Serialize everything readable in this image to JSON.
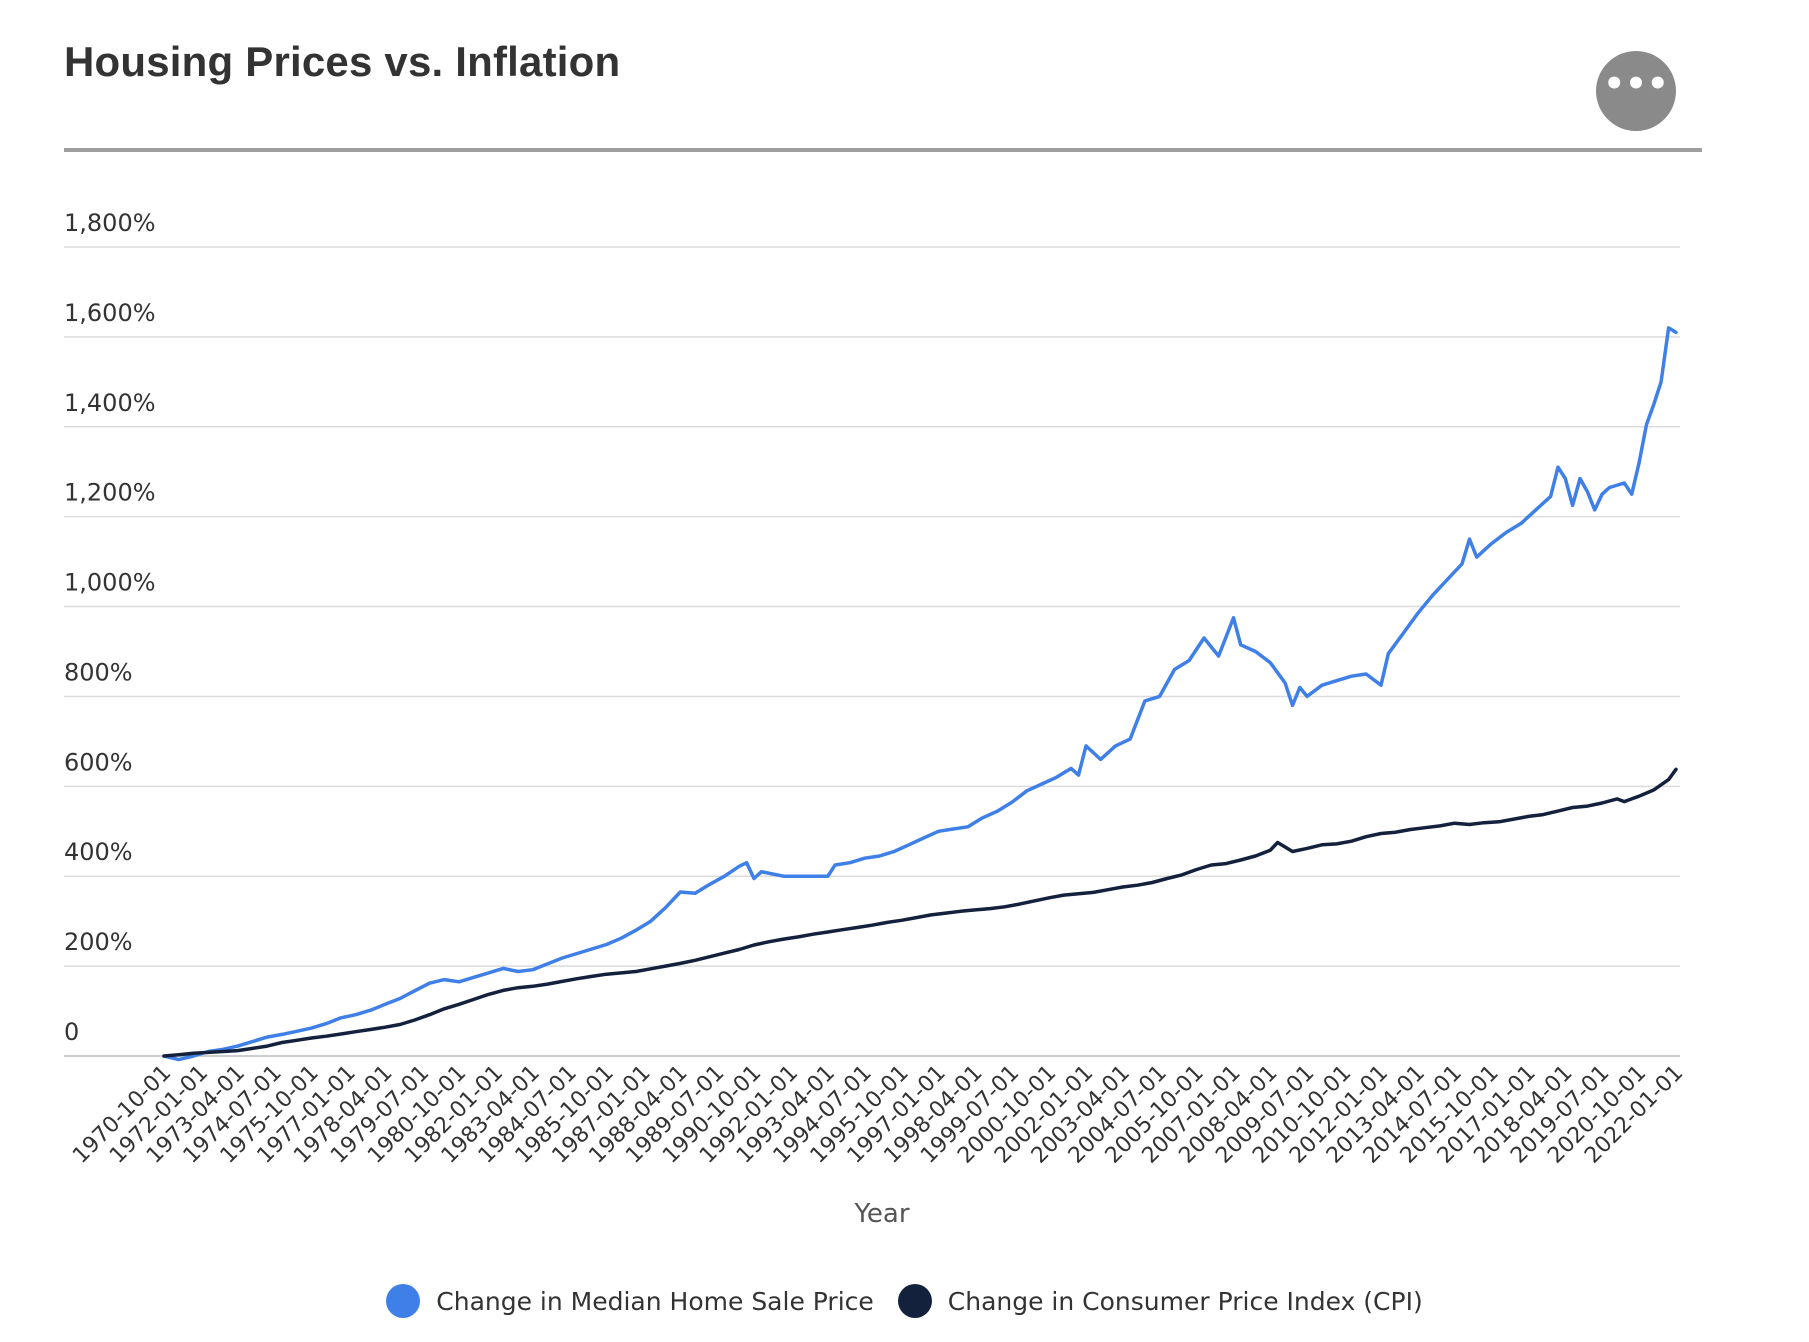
{
  "header": {
    "title": "Housing Prices vs. Inflation",
    "menu_icon": "more-horizontal-icon",
    "menu_glyph": "•••"
  },
  "colors": {
    "home_price": "#3f7fe8",
    "cpi": "#14213d",
    "grid": "#dcdcdc",
    "axis_text": "#333333",
    "header_rule": "#9e9e9e"
  },
  "legend": {
    "items": [
      {
        "label": "Change in Median Home Sale Price",
        "color": "#3f7fe8"
      },
      {
        "label": "Change in Consumer Price Index (CPI)",
        "color": "#14213d"
      }
    ]
  },
  "chart_data": {
    "type": "line",
    "title": "Housing Prices vs. Inflation",
    "xlabel": "Year",
    "ylabel": "",
    "ylim": [
      0,
      1800
    ],
    "yticks": [
      {
        "value": 0,
        "label": "0"
      },
      {
        "value": 200,
        "label": "200%"
      },
      {
        "value": 400,
        "label": "400%"
      },
      {
        "value": 600,
        "label": "600%"
      },
      {
        "value": 800,
        "label": "800%"
      },
      {
        "value": 1000,
        "label": "1,000%"
      },
      {
        "value": 1200,
        "label": "1,200%"
      },
      {
        "value": 1400,
        "label": "1,400%"
      },
      {
        "value": 1600,
        "label": "1,600%"
      },
      {
        "value": 1800,
        "label": "1,800%"
      }
    ],
    "xlim": [
      "1970-10-01",
      "2022-01-01"
    ],
    "xtick_labels": [
      "1970-10-01",
      "1972-01-01",
      "1973-04-01",
      "1974-07-01",
      "1975-10-01",
      "1977-01-01",
      "1978-04-01",
      "1979-07-01",
      "1980-10-01",
      "1982-01-01",
      "1983-04-01",
      "1984-07-01",
      "1985-10-01",
      "1987-01-01",
      "1988-04-01",
      "1989-07-01",
      "1990-10-01",
      "1992-01-01",
      "1993-04-01",
      "1994-07-01",
      "1995-10-01",
      "1997-01-01",
      "1998-04-01",
      "1999-07-01",
      "2000-10-01",
      "2002-01-01",
      "2003-04-01",
      "2004-07-01",
      "2005-10-01",
      "2007-01-01",
      "2008-04-01",
      "2009-07-01",
      "2010-10-01",
      "2012-01-01",
      "2013-04-01",
      "2014-07-01",
      "2015-10-01",
      "2017-01-01",
      "2018-04-01",
      "2019-07-01",
      "2020-10-01",
      "2022-01-01"
    ],
    "grid": true,
    "legend_position": "bottom",
    "series": [
      {
        "name": "Change in Median Home Sale Price",
        "color": "#3f7fe8",
        "points": [
          [
            "1970-10-01",
            0
          ],
          [
            "1971-04-01",
            -8
          ],
          [
            "1971-10-01",
            0
          ],
          [
            "1972-04-01",
            10
          ],
          [
            "1972-10-01",
            15
          ],
          [
            "1973-04-01",
            22
          ],
          [
            "1973-10-01",
            32
          ],
          [
            "1974-04-01",
            42
          ],
          [
            "1974-10-01",
            48
          ],
          [
            "1975-04-01",
            55
          ],
          [
            "1975-10-01",
            62
          ],
          [
            "1976-04-01",
            72
          ],
          [
            "1976-10-01",
            85
          ],
          [
            "1977-04-01",
            92
          ],
          [
            "1977-10-01",
            102
          ],
          [
            "1978-04-01",
            115
          ],
          [
            "1978-10-01",
            128
          ],
          [
            "1979-04-01",
            145
          ],
          [
            "1979-10-01",
            162
          ],
          [
            "1980-04-01",
            170
          ],
          [
            "1980-10-01",
            165
          ],
          [
            "1981-04-01",
            175
          ],
          [
            "1981-10-01",
            185
          ],
          [
            "1982-04-01",
            195
          ],
          [
            "1982-10-01",
            188
          ],
          [
            "1983-04-01",
            192
          ],
          [
            "1983-10-01",
            205
          ],
          [
            "1984-04-01",
            218
          ],
          [
            "1984-10-01",
            228
          ],
          [
            "1985-04-01",
            238
          ],
          [
            "1985-10-01",
            248
          ],
          [
            "1986-04-01",
            262
          ],
          [
            "1986-10-01",
            280
          ],
          [
            "1987-04-01",
            300
          ],
          [
            "1987-10-01",
            330
          ],
          [
            "1988-04-01",
            365
          ],
          [
            "1988-10-01",
            362
          ],
          [
            "1989-04-01",
            382
          ],
          [
            "1989-10-01",
            400
          ],
          [
            "1990-04-01",
            422
          ],
          [
            "1990-07-01",
            430
          ],
          [
            "1990-10-01",
            395
          ],
          [
            "1991-01-01",
            410
          ],
          [
            "1991-10-01",
            400
          ],
          [
            "1992-04-01",
            400
          ],
          [
            "1992-10-01",
            400
          ],
          [
            "1993-04-01",
            400
          ],
          [
            "1993-07-01",
            425
          ],
          [
            "1994-01-01",
            430
          ],
          [
            "1994-07-01",
            440
          ],
          [
            "1995-01-01",
            445
          ],
          [
            "1995-07-01",
            455
          ],
          [
            "1996-01-01",
            470
          ],
          [
            "1996-07-01",
            485
          ],
          [
            "1997-01-01",
            500
          ],
          [
            "1997-07-01",
            505
          ],
          [
            "1998-01-01",
            510
          ],
          [
            "1998-07-01",
            530
          ],
          [
            "1999-01-01",
            545
          ],
          [
            "1999-07-01",
            565
          ],
          [
            "2000-01-01",
            590
          ],
          [
            "2000-07-01",
            605
          ],
          [
            "2001-01-01",
            620
          ],
          [
            "2001-07-01",
            640
          ],
          [
            "2001-10-01",
            625
          ],
          [
            "2002-01-01",
            690
          ],
          [
            "2002-07-01",
            660
          ],
          [
            "2003-01-01",
            690
          ],
          [
            "2003-07-01",
            705
          ],
          [
            "2004-01-01",
            790
          ],
          [
            "2004-07-01",
            800
          ],
          [
            "2005-01-01",
            860
          ],
          [
            "2005-07-01",
            880
          ],
          [
            "2006-01-01",
            930
          ],
          [
            "2006-07-01",
            890
          ],
          [
            "2007-01-01",
            975
          ],
          [
            "2007-04-01",
            915
          ],
          [
            "2007-10-01",
            900
          ],
          [
            "2008-04-01",
            875
          ],
          [
            "2008-10-01",
            830
          ],
          [
            "2009-01-01",
            780
          ],
          [
            "2009-04-01",
            820
          ],
          [
            "2009-07-01",
            800
          ],
          [
            "2010-01-01",
            825
          ],
          [
            "2010-07-01",
            835
          ],
          [
            "2011-01-01",
            845
          ],
          [
            "2011-07-01",
            850
          ],
          [
            "2012-01-01",
            825
          ],
          [
            "2012-04-01",
            895
          ],
          [
            "2012-10-01",
            940
          ],
          [
            "2013-04-01",
            985
          ],
          [
            "2013-10-01",
            1025
          ],
          [
            "2014-04-01",
            1060
          ],
          [
            "2014-10-01",
            1095
          ],
          [
            "2015-01-01",
            1150
          ],
          [
            "2015-04-01",
            1110
          ],
          [
            "2015-10-01",
            1140
          ],
          [
            "2016-04-01",
            1165
          ],
          [
            "2016-10-01",
            1185
          ],
          [
            "2017-04-01",
            1215
          ],
          [
            "2017-10-01",
            1245
          ],
          [
            "2018-01-01",
            1310
          ],
          [
            "2018-04-01",
            1285
          ],
          [
            "2018-07-01",
            1225
          ],
          [
            "2018-10-01",
            1285
          ],
          [
            "2019-01-01",
            1255
          ],
          [
            "2019-04-01",
            1215
          ],
          [
            "2019-07-01",
            1250
          ],
          [
            "2019-10-01",
            1265
          ],
          [
            "2020-04-01",
            1275
          ],
          [
            "2020-07-01",
            1250
          ],
          [
            "2020-10-01",
            1320
          ],
          [
            "2021-01-01",
            1405
          ],
          [
            "2021-04-01",
            1450
          ],
          [
            "2021-07-01",
            1500
          ],
          [
            "2021-10-01",
            1620
          ],
          [
            "2022-01-01",
            1610
          ]
        ]
      },
      {
        "name": "Change in Consumer Price Index (CPI)",
        "color": "#14213d",
        "points": [
          [
            "1970-10-01",
            0
          ],
          [
            "1971-04-01",
            3
          ],
          [
            "1971-10-01",
            6
          ],
          [
            "1972-04-01",
            8
          ],
          [
            "1972-10-01",
            10
          ],
          [
            "1973-04-01",
            12
          ],
          [
            "1973-10-01",
            17
          ],
          [
            "1974-04-01",
            22
          ],
          [
            "1974-10-01",
            30
          ],
          [
            "1975-04-01",
            35
          ],
          [
            "1975-10-01",
            40
          ],
          [
            "1976-04-01",
            44
          ],
          [
            "1976-10-01",
            49
          ],
          [
            "1977-04-01",
            54
          ],
          [
            "1977-10-01",
            59
          ],
          [
            "1978-04-01",
            64
          ],
          [
            "1978-10-01",
            70
          ],
          [
            "1979-04-01",
            80
          ],
          [
            "1979-10-01",
            92
          ],
          [
            "1980-04-01",
            105
          ],
          [
            "1980-10-01",
            115
          ],
          [
            "1981-04-01",
            126
          ],
          [
            "1981-10-01",
            137
          ],
          [
            "1982-04-01",
            146
          ],
          [
            "1982-10-01",
            152
          ],
          [
            "1983-04-01",
            155
          ],
          [
            "1983-10-01",
            160
          ],
          [
            "1984-04-01",
            166
          ],
          [
            "1984-10-01",
            172
          ],
          [
            "1985-04-01",
            177
          ],
          [
            "1985-10-01",
            182
          ],
          [
            "1986-04-01",
            185
          ],
          [
            "1986-10-01",
            188
          ],
          [
            "1987-04-01",
            194
          ],
          [
            "1987-10-01",
            200
          ],
          [
            "1988-04-01",
            206
          ],
          [
            "1988-10-01",
            213
          ],
          [
            "1989-04-01",
            221
          ],
          [
            "1989-10-01",
            229
          ],
          [
            "1990-04-01",
            237
          ],
          [
            "1990-10-01",
            247
          ],
          [
            "1991-04-01",
            254
          ],
          [
            "1991-10-01",
            260
          ],
          [
            "1992-04-01",
            265
          ],
          [
            "1992-10-01",
            271
          ],
          [
            "1993-04-01",
            276
          ],
          [
            "1993-10-01",
            281
          ],
          [
            "1994-04-01",
            286
          ],
          [
            "1994-10-01",
            291
          ],
          [
            "1995-04-01",
            297
          ],
          [
            "1995-10-01",
            302
          ],
          [
            "1996-04-01",
            308
          ],
          [
            "1996-10-01",
            314
          ],
          [
            "1997-04-01",
            318
          ],
          [
            "1997-10-01",
            322
          ],
          [
            "1998-04-01",
            325
          ],
          [
            "1998-10-01",
            328
          ],
          [
            "1999-04-01",
            332
          ],
          [
            "1999-10-01",
            338
          ],
          [
            "2000-04-01",
            345
          ],
          [
            "2000-10-01",
            352
          ],
          [
            "2001-04-01",
            358
          ],
          [
            "2001-10-01",
            361
          ],
          [
            "2002-04-01",
            364
          ],
          [
            "2002-10-01",
            370
          ],
          [
            "2003-04-01",
            376
          ],
          [
            "2003-10-01",
            380
          ],
          [
            "2004-04-01",
            386
          ],
          [
            "2004-10-01",
            395
          ],
          [
            "2005-04-01",
            403
          ],
          [
            "2005-10-01",
            415
          ],
          [
            "2006-04-01",
            425
          ],
          [
            "2006-10-01",
            428
          ],
          [
            "2007-04-01",
            436
          ],
          [
            "2007-10-01",
            445
          ],
          [
            "2008-04-01",
            458
          ],
          [
            "2008-07-01",
            475
          ],
          [
            "2008-10-01",
            465
          ],
          [
            "2009-01-01",
            455
          ],
          [
            "2009-07-01",
            462
          ],
          [
            "2010-01-01",
            470
          ],
          [
            "2010-07-01",
            472
          ],
          [
            "2011-01-01",
            478
          ],
          [
            "2011-07-01",
            488
          ],
          [
            "2012-01-01",
            495
          ],
          [
            "2012-07-01",
            498
          ],
          [
            "2013-01-01",
            504
          ],
          [
            "2013-07-01",
            508
          ],
          [
            "2014-01-01",
            512
          ],
          [
            "2014-07-01",
            518
          ],
          [
            "2015-01-01",
            515
          ],
          [
            "2015-07-01",
            519
          ],
          [
            "2016-01-01",
            521
          ],
          [
            "2016-07-01",
            527
          ],
          [
            "2017-01-01",
            533
          ],
          [
            "2017-07-01",
            537
          ],
          [
            "2018-01-01",
            545
          ],
          [
            "2018-07-01",
            553
          ],
          [
            "2019-01-01",
            556
          ],
          [
            "2019-07-01",
            563
          ],
          [
            "2020-01-01",
            572
          ],
          [
            "2020-04-01",
            566
          ],
          [
            "2020-07-01",
            572
          ],
          [
            "2020-10-01",
            578
          ],
          [
            "2021-04-01",
            592
          ],
          [
            "2021-10-01",
            615
          ],
          [
            "2022-01-01",
            638
          ]
        ]
      }
    ]
  }
}
